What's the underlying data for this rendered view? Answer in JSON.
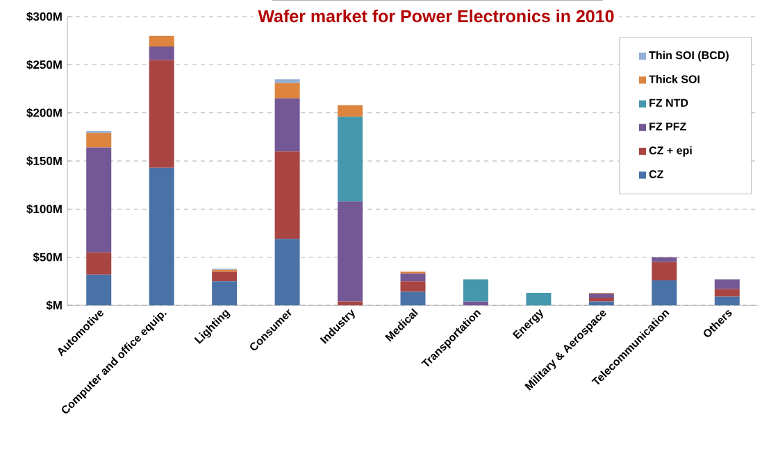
{
  "chart_data": {
    "type": "bar",
    "stacked": true,
    "title": "Wafer market for Power Electronics in 2010",
    "categories": [
      "Automotive",
      "Computer and office  equip.",
      "Lighting",
      "Consumer",
      "Industry",
      "Medical",
      "Transportation",
      "Energy",
      "Military & Aerospace",
      "Telecommunication",
      "Others"
    ],
    "series": [
      {
        "name": "CZ",
        "color": "#4a72a6",
        "values": [
          32,
          143,
          25,
          69,
          0,
          14,
          0,
          0,
          4,
          26,
          9
        ]
      },
      {
        "name": "CZ + epi",
        "color": "#a84543",
        "values": [
          23,
          112,
          10,
          91,
          4,
          11,
          0,
          0,
          4,
          19,
          8
        ]
      },
      {
        "name": "FZ PFZ",
        "color": "#735895",
        "values": [
          109,
          14,
          0,
          55,
          104,
          8,
          4,
          0,
          4,
          5,
          10
        ]
      },
      {
        "name": "FZ NTD",
        "color": "#4497ac",
        "values": [
          0,
          0,
          0,
          0,
          88,
          0,
          23,
          13,
          0,
          0,
          0
        ]
      },
      {
        "name": "Thick SOI",
        "color": "#dd843e",
        "values": [
          15,
          11,
          2,
          16,
          12,
          2,
          0,
          0,
          1,
          0,
          0
        ]
      },
      {
        "name": "Thin SOI (BCD)",
        "color": "#94aed5",
        "values": [
          2,
          0,
          1,
          4,
          0,
          0,
          0,
          0,
          0,
          0,
          0
        ]
      }
    ],
    "ylim": [
      0,
      300
    ],
    "yticks": [
      {
        "value": 0,
        "label": "$M"
      },
      {
        "value": 50,
        "label": "$50M"
      },
      {
        "value": 100,
        "label": "$100M"
      },
      {
        "value": 150,
        "label": "$150M"
      },
      {
        "value": 200,
        "label": "$200M"
      },
      {
        "value": 250,
        "label": "$250M"
      },
      {
        "value": 300,
        "label": "$300M"
      }
    ],
    "grid": "y",
    "legend": "top right"
  }
}
